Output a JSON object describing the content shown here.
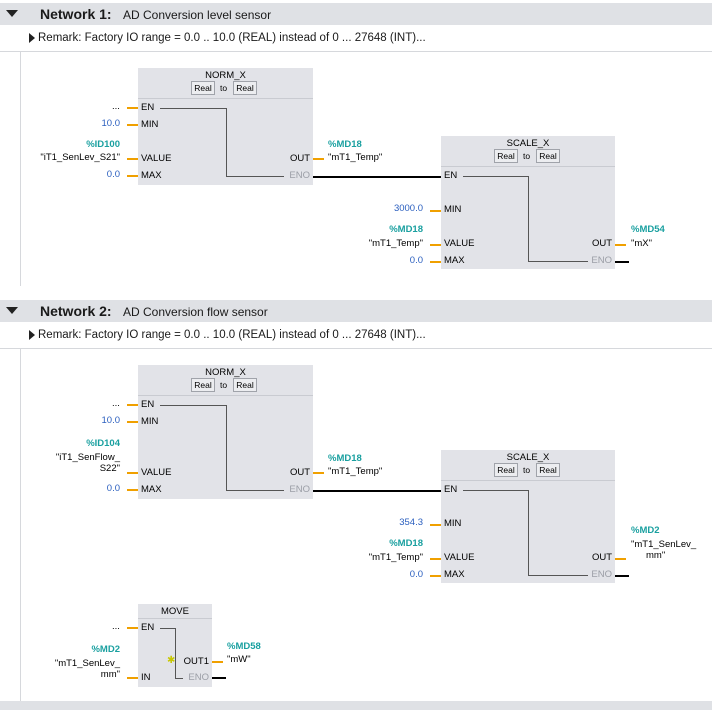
{
  "network1": {
    "label": "Network 1:",
    "title": "AD Conversion level sensor",
    "remark": "Remark: Factory IO range = 0.0 .. 10.0 (REAL) instead of 0 ... 27648 (INT)...",
    "norm": {
      "name": "NORM_X",
      "type_from": "Real",
      "type_to": "to",
      "type_target": "Real",
      "pin_en": "EN",
      "pin_min": "MIN",
      "pin_value": "VALUE",
      "pin_max": "MAX",
      "pin_out": "OUT",
      "pin_eno": "ENO",
      "en_input": "...",
      "min_const": "10.0",
      "value_addr": "%ID100",
      "value_sym": "\"iT1_SenLev_S21\"",
      "max_const": "0.0",
      "out_addr": "%MD18",
      "out_sym": "\"mT1_Temp\""
    },
    "scale": {
      "name": "SCALE_X",
      "type_from": "Real",
      "type_to": "to",
      "type_target": "Real",
      "pin_en": "EN",
      "pin_min": "MIN",
      "pin_value": "VALUE",
      "pin_max": "MAX",
      "pin_out": "OUT",
      "pin_eno": "ENO",
      "min_const": "3000.0",
      "value_addr": "%MD18",
      "value_sym": "\"mT1_Temp\"",
      "max_const": "0.0",
      "out_addr": "%MD54",
      "out_sym": "\"mX\""
    }
  },
  "network2": {
    "label": "Network 2:",
    "title": "AD Conversion flow sensor",
    "remark": "Remark: Factory IO range = 0.0 .. 10.0 (REAL) instead of 0 ... 27648 (INT)...",
    "norm": {
      "name": "NORM_X",
      "type_from": "Real",
      "type_to": "to",
      "type_target": "Real",
      "pin_en": "EN",
      "pin_min": "MIN",
      "pin_value": "VALUE",
      "pin_max": "MAX",
      "pin_out": "OUT",
      "pin_eno": "ENO",
      "en_input": "...",
      "min_const": "10.0",
      "value_addr": "%ID104",
      "value_sym_line1": "\"iT1_SenFlow_",
      "value_sym_line2": "S22\"",
      "max_const": "0.0",
      "out_addr": "%MD18",
      "out_sym": "\"mT1_Temp\""
    },
    "scale": {
      "name": "SCALE_X",
      "type_from": "Real",
      "type_to": "to",
      "type_target": "Real",
      "pin_en": "EN",
      "pin_min": "MIN",
      "pin_value": "VALUE",
      "pin_max": "MAX",
      "pin_out": "OUT",
      "pin_eno": "ENO",
      "min_const": "354.3",
      "value_addr": "%MD18",
      "value_sym": "\"mT1_Temp\"",
      "max_const": "0.0",
      "out_addr": "%MD2",
      "out_sym_line1": "\"mT1_SenLev_",
      "out_sym_line2": "mm\""
    },
    "move": {
      "name": "MOVE",
      "pin_en": "EN",
      "pin_in": "IN",
      "pin_out1": "OUT1",
      "pin_eno": "ENO",
      "en_input": "...",
      "in_addr": "%MD2",
      "in_sym_line1": "\"mT1_SenLev_",
      "in_sym_line2": "mm\"",
      "out_addr": "%MD58",
      "out_sym": "\"mW\""
    }
  },
  "colors": {
    "address": "#1aa0a0",
    "constant": "#2b5fbf",
    "pin_stub": "#f0a000",
    "header_bg": "#dfe1e5",
    "block_bg": "#e2e3e8"
  }
}
